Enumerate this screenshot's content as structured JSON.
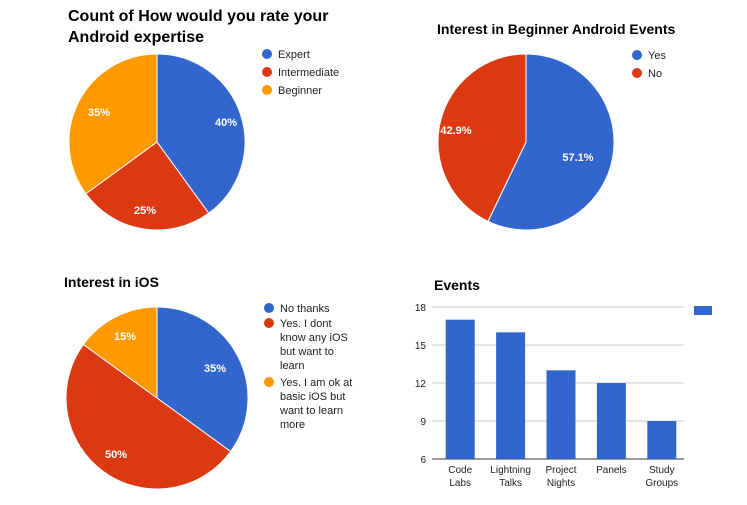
{
  "colors": {
    "blue": "#3366cc",
    "red": "#dc3912",
    "orange": "#ff9900"
  },
  "chart_data": [
    {
      "type": "pie",
      "title_lines": [
        "Count of How would you rate your",
        "Android expertise"
      ],
      "legend_position": "right",
      "slices": [
        {
          "label": "Expert",
          "value": 40,
          "display": "40%",
          "color": "#3366cc"
        },
        {
          "label": "Intermediate",
          "value": 25,
          "display": "25%",
          "color": "#dc3912"
        },
        {
          "label": "Beginner",
          "value": 35,
          "display": "35%",
          "color": "#ff9900"
        }
      ]
    },
    {
      "type": "pie",
      "title_lines": [
        "Interest in Beginner Android Events"
      ],
      "legend_position": "right",
      "slices": [
        {
          "label": "Yes",
          "value": 57.1,
          "display": "57.1%",
          "color": "#3366cc"
        },
        {
          "label": "No",
          "value": 42.9,
          "display": "42.9%",
          "color": "#dc3912"
        }
      ]
    },
    {
      "type": "pie",
      "title_lines": [
        "Interest in iOS"
      ],
      "legend_position": "right",
      "slices": [
        {
          "label_lines": [
            "No thanks"
          ],
          "value": 35,
          "display": "35%",
          "color": "#3366cc"
        },
        {
          "label_lines": [
            "Yes. I dont",
            "know any iOS",
            "but want to",
            "learn"
          ],
          "value": 50,
          "display": "50%",
          "color": "#dc3912"
        },
        {
          "label_lines": [
            "Yes. I am ok at",
            "basic iOS  but",
            "want to learn",
            "more"
          ],
          "value": 15,
          "display": "15%",
          "color": "#ff9900"
        }
      ]
    },
    {
      "type": "bar",
      "title": "Events",
      "categories": [
        [
          "Code",
          "Labs"
        ],
        [
          "Lightning",
          "Talks"
        ],
        [
          "Project",
          "Nights"
        ],
        [
          "Panels"
        ],
        [
          "Study",
          "Groups"
        ]
      ],
      "values": [
        17,
        16,
        13,
        12,
        9
      ],
      "ylim": [
        6,
        18
      ],
      "yticks": [
        6,
        9,
        12,
        15,
        18
      ],
      "grid": true,
      "legend_position": "right",
      "legend_label": "",
      "color": "#3366cc"
    }
  ]
}
